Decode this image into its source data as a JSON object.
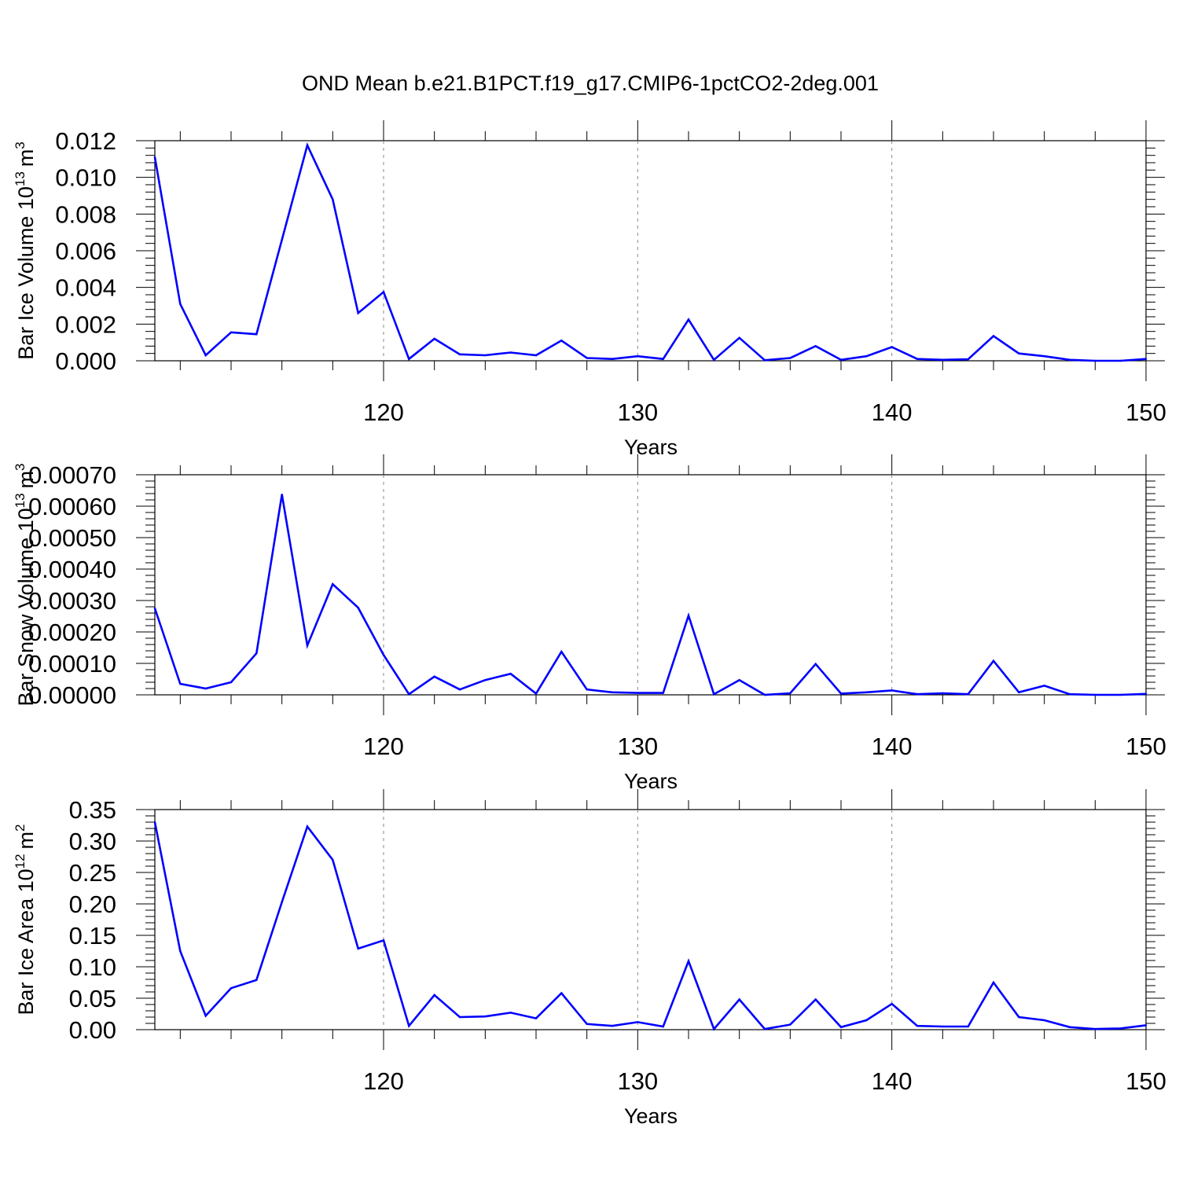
{
  "title": "OND Mean b.e21.B1PCT.f19_g17.CMIP6-1pctCO2-2deg.001",
  "line_color": "#0000ff",
  "chart_data": [
    {
      "type": "line",
      "xlabel": "Years",
      "ylabel": "Bar Ice Volume 10",
      "ylabel_exp": "13",
      "ylabel_unit": "m",
      "ylabel_unit_exp": "3",
      "xlim": [
        111,
        150
      ],
      "ylim": [
        0,
        0.012
      ],
      "x_ticks": [
        "120",
        "130",
        "140",
        "150"
      ],
      "y_ticks": [
        "0.000",
        "0.002",
        "0.004",
        "0.006",
        "0.008",
        "0.010",
        "0.012"
      ],
      "grid": "vertical dashed at major x ticks",
      "x": [
        111,
        112,
        113,
        114,
        115,
        116,
        117,
        118,
        119,
        120,
        121,
        122,
        123,
        124,
        125,
        126,
        127,
        128,
        129,
        130,
        131,
        132,
        133,
        134,
        135,
        136,
        137,
        138,
        139,
        140,
        141,
        142,
        143,
        144,
        145,
        146,
        147,
        148,
        149,
        150
      ],
      "values": [
        0.0111,
        0.0031,
        0.0003,
        0.00155,
        0.00145,
        0.0066,
        0.01175,
        0.0088,
        0.0026,
        0.00375,
        0.0001,
        0.0012,
        0.00035,
        0.0003,
        0.00045,
        0.0003,
        0.0011,
        0.00015,
        0.0001,
        0.00025,
        0.0001,
        0.00225,
        5e-05,
        0.00125,
        3e-05,
        0.00015,
        0.0008,
        5e-05,
        0.00025,
        0.00075,
        0.0001,
        5e-05,
        8e-05,
        0.00135,
        0.0004,
        0.00025,
        5e-05,
        0.0,
        0.0,
        0.0001
      ]
    },
    {
      "type": "line",
      "xlabel": "Years",
      "ylabel": "Bar Snow Volume 10",
      "ylabel_exp": "13",
      "ylabel_unit": "m",
      "ylabel_unit_exp": "3",
      "xlim": [
        111,
        150
      ],
      "ylim": [
        0,
        0.0007
      ],
      "x_ticks": [
        "120",
        "130",
        "140",
        "150"
      ],
      "y_ticks": [
        "0.00000",
        "0.00010",
        "0.00020",
        "0.00030",
        "0.00040",
        "0.00050",
        "0.00060",
        "0.00070"
      ],
      "grid": "vertical dashed at major x ticks",
      "x": [
        111,
        112,
        113,
        114,
        115,
        116,
        117,
        118,
        119,
        120,
        121,
        122,
        123,
        124,
        125,
        126,
        127,
        128,
        129,
        130,
        131,
        132,
        133,
        134,
        135,
        136,
        137,
        138,
        139,
        140,
        141,
        142,
        143,
        144,
        145,
        146,
        147,
        148,
        149,
        150
      ],
      "values": [
        0.000275,
        3.5e-05,
        2e-05,
        4e-05,
        0.000132,
        0.000637,
        0.000157,
        0.000352,
        0.000277,
        0.000127,
        2e-06,
        5.8e-05,
        1.7e-05,
        4.7e-05,
        6.7e-05,
        4e-06,
        0.000137,
        1.7e-05,
        8e-06,
        6e-06,
        6e-06,
        0.000252,
        2e-06,
        4.7e-05,
        0.0,
        5e-06,
        9.8e-05,
        4e-06,
        8e-06,
        1.4e-05,
        2e-06,
        5e-06,
        2e-06,
        0.000108,
        8e-06,
        2.9e-05,
        2e-06,
        0.0,
        0.0,
        3e-06
      ]
    },
    {
      "type": "line",
      "xlabel": "Years",
      "ylabel": "Bar Ice Area 10",
      "ylabel_exp": "12",
      "ylabel_unit": "m",
      "ylabel_unit_exp": "2",
      "xlim": [
        111,
        150
      ],
      "ylim": [
        0,
        0.35
      ],
      "x_ticks": [
        "120",
        "130",
        "140",
        "150"
      ],
      "y_ticks": [
        "0.00",
        "0.05",
        "0.10",
        "0.15",
        "0.20",
        "0.25",
        "0.30",
        "0.35"
      ],
      "grid": "vertical dashed at major x ticks",
      "x": [
        111,
        112,
        113,
        114,
        115,
        116,
        117,
        118,
        119,
        120,
        121,
        122,
        123,
        124,
        125,
        126,
        127,
        128,
        129,
        130,
        131,
        132,
        133,
        134,
        135,
        136,
        137,
        138,
        139,
        140,
        141,
        142,
        143,
        144,
        145,
        146,
        147,
        148,
        149,
        150
      ],
      "values": [
        0.33,
        0.125,
        0.022,
        0.066,
        0.079,
        0.203,
        0.323,
        0.27,
        0.129,
        0.142,
        0.006,
        0.055,
        0.02,
        0.021,
        0.027,
        0.018,
        0.058,
        0.009,
        0.006,
        0.012,
        0.005,
        0.109,
        0.001,
        0.048,
        0.001,
        0.008,
        0.048,
        0.004,
        0.015,
        0.041,
        0.006,
        0.005,
        0.005,
        0.075,
        0.02,
        0.015,
        0.004,
        0.001,
        0.002,
        0.007
      ]
    }
  ]
}
